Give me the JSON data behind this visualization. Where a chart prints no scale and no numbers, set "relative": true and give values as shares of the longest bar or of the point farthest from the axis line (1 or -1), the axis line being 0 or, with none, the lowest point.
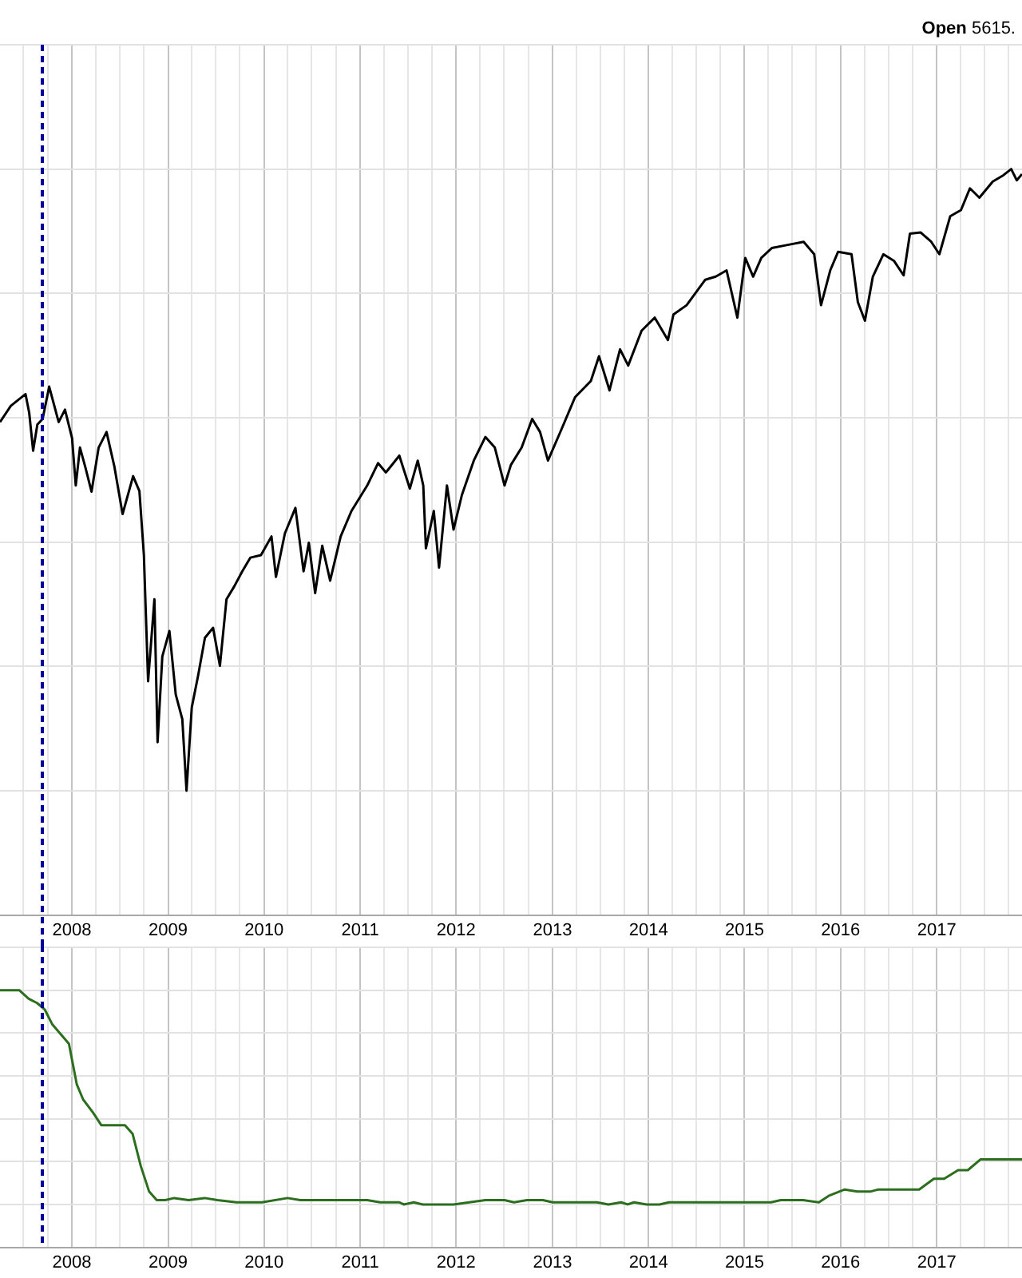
{
  "chart_data": [
    {
      "type": "line",
      "annotations": [
        "Open 5615."
      ],
      "relative": true,
      "grid": true,
      "marker": "none",
      "xlim": [
        "2007-04-03",
        "2017-11-21"
      ],
      "xticks": [
        {
          "value": "2007-07-01",
          "label": null
        },
        {
          "value": "2007-10-01",
          "label": null
        },
        {
          "value": "2008-01-01",
          "label": "2008"
        },
        {
          "value": "2008-04-01",
          "label": null
        },
        {
          "value": "2008-07-01",
          "label": null
        },
        {
          "value": "2008-10-01",
          "label": null
        },
        {
          "value": "2009-01-01",
          "label": "2009"
        },
        {
          "value": "2009-04-01",
          "label": null
        },
        {
          "value": "2009-07-01",
          "label": null
        },
        {
          "value": "2009-10-01",
          "label": null
        },
        {
          "value": "2010-01-01",
          "label": "2010"
        },
        {
          "value": "2010-04-01",
          "label": null
        },
        {
          "value": "2010-07-01",
          "label": null
        },
        {
          "value": "2010-10-01",
          "label": null
        },
        {
          "value": "2011-01-01",
          "label": "2011"
        },
        {
          "value": "2011-04-01",
          "label": null
        },
        {
          "value": "2011-07-01",
          "label": null
        },
        {
          "value": "2011-10-01",
          "label": null
        },
        {
          "value": "2012-01-01",
          "label": "2012"
        },
        {
          "value": "2012-04-01",
          "label": null
        },
        {
          "value": "2012-07-01",
          "label": null
        },
        {
          "value": "2012-10-01",
          "label": null
        },
        {
          "value": "2013-01-01",
          "label": "2013"
        },
        {
          "value": "2013-04-01",
          "label": null
        },
        {
          "value": "2013-07-01",
          "label": null
        },
        {
          "value": "2013-10-01",
          "label": null
        },
        {
          "value": "2014-01-01",
          "label": "2014"
        },
        {
          "value": "2014-04-01",
          "label": null
        },
        {
          "value": "2014-07-01",
          "label": null
        },
        {
          "value": "2014-10-01",
          "label": null
        },
        {
          "value": "2015-01-01",
          "label": "2015"
        },
        {
          "value": "2015-04-01",
          "label": null
        },
        {
          "value": "2015-07-01",
          "label": null
        },
        {
          "value": "2015-10-01",
          "label": null
        },
        {
          "value": "2016-01-01",
          "label": "2016"
        },
        {
          "value": "2016-04-01",
          "label": null
        },
        {
          "value": "2016-07-01",
          "label": null
        },
        {
          "value": "2016-10-01",
          "label": null
        },
        {
          "value": "2017-01-01",
          "label": "2017"
        },
        {
          "value": "2017-04-01",
          "label": null
        },
        {
          "value": "2017-07-01",
          "label": null
        },
        {
          "value": "2017-10-01",
          "label": null
        }
      ],
      "ref_lines": [
        {
          "axis": "x",
          "value": "2007-09-11",
          "color": "#000099",
          "line_style": "dashed"
        }
      ],
      "x": [
        "2007-04-03",
        "2007-05-14",
        "2007-07-09",
        "2007-07-23",
        "2007-08-07",
        "2007-08-23",
        "2007-09-12",
        "2007-10-07",
        "2007-11-12",
        "2007-12-06",
        "2008-01-02",
        "2008-01-16",
        "2008-02-01",
        "2008-02-21",
        "2008-03-16",
        "2008-04-12",
        "2008-05-12",
        "2008-06-11",
        "2008-07-12",
        "2008-08-21",
        "2008-09-14",
        "2008-10-01",
        "2008-10-17",
        "2008-11-10",
        "2008-11-22",
        "2008-12-10",
        "2009-01-06",
        "2009-01-30",
        "2009-02-24",
        "2009-03-12",
        "2009-04-01",
        "2009-04-25",
        "2009-05-21",
        "2009-06-21",
        "2009-07-17",
        "2009-08-11",
        "2009-09-10",
        "2009-10-10",
        "2009-11-10",
        "2009-12-20",
        "2010-01-29",
        "2010-02-15",
        "2010-03-21",
        "2010-04-30",
        "2010-05-31",
        "2010-06-20",
        "2010-07-14",
        "2010-08-10",
        "2010-09-09",
        "2010-10-19",
        "2010-11-29",
        "2011-01-28",
        "2011-03-10",
        "2011-04-09",
        "2011-05-30",
        "2011-07-09",
        "2011-08-08",
        "2011-08-29",
        "2011-09-08",
        "2011-10-08",
        "2011-10-28",
        "2011-11-27",
        "2011-12-22",
        "2012-01-23",
        "2012-03-08",
        "2012-04-21",
        "2012-05-27",
        "2012-07-03",
        "2012-07-27",
        "2012-09-06",
        "2012-10-16",
        "2012-11-15",
        "2012-12-15",
        "2013-02-05",
        "2013-03-28",
        "2013-05-27",
        "2013-06-27",
        "2013-08-06",
        "2013-09-15",
        "2013-10-16",
        "2013-12-06",
        "2014-01-25",
        "2014-03-16",
        "2014-04-06",
        "2014-05-26",
        "2014-08-05",
        "2014-09-14",
        "2014-10-25",
        "2014-12-05",
        "2015-01-04",
        "2015-02-03",
        "2015-03-06",
        "2015-04-15",
        "2015-06-14",
        "2015-08-14",
        "2015-09-23",
        "2015-10-19",
        "2015-11-23",
        "2015-12-23",
        "2016-02-12",
        "2016-03-07",
        "2016-04-03",
        "2016-05-03",
        "2016-06-12",
        "2016-07-23",
        "2016-08-28",
        "2016-09-21",
        "2016-11-01",
        "2016-12-11",
        "2017-01-11",
        "2017-02-21",
        "2017-04-03",
        "2017-05-07",
        "2017-06-12",
        "2017-08-02",
        "2017-09-11",
        "2017-10-11",
        "2017-11-01",
        "2017-11-21"
      ],
      "series": [
        {
          "color": "#000000",
          "values": [
            0.593,
            0.619,
            0.638,
            0.608,
            0.547,
            0.589,
            0.598,
            0.65,
            0.593,
            0.613,
            0.567,
            0.491,
            0.552,
            0.521,
            0.481,
            0.552,
            0.577,
            0.521,
            0.445,
            0.506,
            0.482,
            0.379,
            0.176,
            0.308,
            0.078,
            0.216,
            0.257,
            0.155,
            0.115,
            0.0,
            0.134,
            0.185,
            0.246,
            0.262,
            0.201,
            0.308,
            0.329,
            0.353,
            0.375,
            0.379,
            0.409,
            0.344,
            0.414,
            0.455,
            0.353,
            0.399,
            0.318,
            0.394,
            0.338,
            0.409,
            0.45,
            0.491,
            0.527,
            0.512,
            0.539,
            0.486,
            0.531,
            0.491,
            0.39,
            0.45,
            0.359,
            0.491,
            0.42,
            0.476,
            0.531,
            0.569,
            0.552,
            0.491,
            0.524,
            0.552,
            0.598,
            0.577,
            0.531,
            0.582,
            0.633,
            0.659,
            0.699,
            0.644,
            0.71,
            0.684,
            0.74,
            0.761,
            0.725,
            0.766,
            0.781,
            0.822,
            0.827,
            0.837,
            0.761,
            0.857,
            0.827,
            0.857,
            0.873,
            0.878,
            0.883,
            0.863,
            0.781,
            0.837,
            0.867,
            0.863,
            0.786,
            0.756,
            0.827,
            0.863,
            0.852,
            0.829,
            0.896,
            0.898,
            0.883,
            0.863,
            0.924,
            0.934,
            0.969,
            0.954,
            0.98,
            0.99,
            1.0,
            0.982,
            0.992
          ]
        }
      ]
    },
    {
      "type": "line",
      "relative": true,
      "grid": true,
      "marker": "none",
      "xlim": [
        "2007-04-03",
        "2017-11-21"
      ],
      "xticks": [
        {
          "value": "2007-07-01",
          "label": null
        },
        {
          "value": "2007-10-01",
          "label": null
        },
        {
          "value": "2008-01-01",
          "label": "2008"
        },
        {
          "value": "2008-04-01",
          "label": null
        },
        {
          "value": "2008-07-01",
          "label": null
        },
        {
          "value": "2008-10-01",
          "label": null
        },
        {
          "value": "2009-01-01",
          "label": "2009"
        },
        {
          "value": "2009-04-01",
          "label": null
        },
        {
          "value": "2009-07-01",
          "label": null
        },
        {
          "value": "2009-10-01",
          "label": null
        },
        {
          "value": "2010-01-01",
          "label": "2010"
        },
        {
          "value": "2010-04-01",
          "label": null
        },
        {
          "value": "2010-07-01",
          "label": null
        },
        {
          "value": "2010-10-01",
          "label": null
        },
        {
          "value": "2011-01-01",
          "label": "2011"
        },
        {
          "value": "2011-04-01",
          "label": null
        },
        {
          "value": "2011-07-01",
          "label": null
        },
        {
          "value": "2011-10-01",
          "label": null
        },
        {
          "value": "2012-01-01",
          "label": "2012"
        },
        {
          "value": "2012-04-01",
          "label": null
        },
        {
          "value": "2012-07-01",
          "label": null
        },
        {
          "value": "2012-10-01",
          "label": null
        },
        {
          "value": "2013-01-01",
          "label": "2013"
        },
        {
          "value": "2013-04-01",
          "label": null
        },
        {
          "value": "2013-07-01",
          "label": null
        },
        {
          "value": "2013-10-01",
          "label": null
        },
        {
          "value": "2014-01-01",
          "label": "2014"
        },
        {
          "value": "2014-04-01",
          "label": null
        },
        {
          "value": "2014-07-01",
          "label": null
        },
        {
          "value": "2014-10-01",
          "label": null
        },
        {
          "value": "2015-01-01",
          "label": "2015"
        },
        {
          "value": "2015-04-01",
          "label": null
        },
        {
          "value": "2015-07-01",
          "label": null
        },
        {
          "value": "2015-10-01",
          "label": null
        },
        {
          "value": "2016-01-01",
          "label": "2016"
        },
        {
          "value": "2016-04-01",
          "label": null
        },
        {
          "value": "2016-07-01",
          "label": null
        },
        {
          "value": "2016-10-01",
          "label": null
        },
        {
          "value": "2017-01-01",
          "label": "2017"
        },
        {
          "value": "2017-04-01",
          "label": null
        },
        {
          "value": "2017-07-01",
          "label": null
        },
        {
          "value": "2017-10-01",
          "label": null
        }
      ],
      "ref_lines": [
        {
          "axis": "x",
          "value": "2007-09-11",
          "color": "#000099",
          "line_style": "dashed"
        }
      ],
      "x": [
        "2007-04-03",
        "2007-06-15",
        "2007-07-21",
        "2007-08-22",
        "2007-09-20",
        "2007-10-19",
        "2007-12-21",
        "2008-01-20",
        "2008-02-13",
        "2008-03-21",
        "2008-04-22",
        "2008-05-26",
        "2008-07-21",
        "2008-08-19",
        "2008-09-19",
        "2008-10-21",
        "2008-11-19",
        "2008-12-21",
        "2009-01-24",
        "2009-03-20",
        "2009-05-20",
        "2009-07-08",
        "2009-09-18",
        "2009-12-24",
        "2010-03-31",
        "2010-05-19",
        "2011-01-28",
        "2011-03-18",
        "2011-05-30",
        "2011-06-16",
        "2011-07-24",
        "2011-08-27",
        "2011-12-22",
        "2012-02-20",
        "2012-04-21",
        "2012-07-03",
        "2012-08-08",
        "2012-09-26",
        "2012-11-26",
        "2013-01-02",
        "2013-03-28",
        "2013-05-03",
        "2013-06-19",
        "2013-08-02",
        "2013-09-19",
        "2013-10-14",
        "2013-11-07",
        "2013-12-25",
        "2014-02-12",
        "2014-03-20",
        "2015-04-12",
        "2015-05-19",
        "2015-08-12",
        "2015-10-11",
        "2015-11-17",
        "2016-01-17",
        "2016-03-05",
        "2016-04-23",
        "2016-05-24",
        "2016-10-26",
        "2016-12-21",
        "2017-01-29",
        "2017-03-23",
        "2017-04-29",
        "2017-06-16",
        "2017-09-04",
        "2017-11-21"
      ],
      "series": [
        {
          "color": "#2a6e1e",
          "values": [
            1.0,
            1.0,
            0.96,
            0.94,
            0.91,
            0.84,
            0.75,
            0.56,
            0.49,
            0.43,
            0.37,
            0.37,
            0.37,
            0.33,
            0.18,
            0.06,
            0.02,
            0.02,
            0.03,
            0.02,
            0.03,
            0.02,
            0.01,
            0.01,
            0.03,
            0.02,
            0.02,
            0.01,
            0.01,
            0.0,
            0.01,
            0.0,
            0.0,
            0.01,
            0.02,
            0.02,
            0.01,
            0.02,
            0.02,
            0.01,
            0.01,
            0.01,
            0.01,
            0.0,
            0.01,
            0.0,
            0.01,
            0.0,
            0.0,
            0.01,
            0.01,
            0.02,
            0.02,
            0.01,
            0.04,
            0.07,
            0.06,
            0.06,
            0.07,
            0.07,
            0.12,
            0.12,
            0.16,
            0.16,
            0.21,
            0.21,
            0.21
          ]
        }
      ]
    }
  ]
}
